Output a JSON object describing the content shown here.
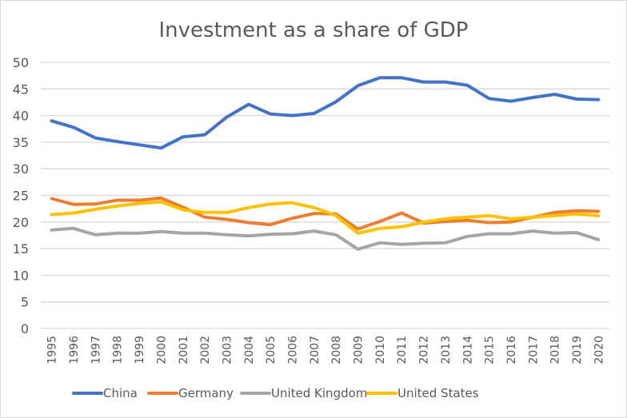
{
  "chart_data": {
    "type": "line",
    "title": "Investment as a share of GDP",
    "xlabel": "",
    "ylabel": "",
    "ylim": [
      0,
      50
    ],
    "yticks": [
      0,
      5,
      10,
      15,
      20,
      25,
      30,
      35,
      40,
      45,
      50
    ],
    "grid": true,
    "legend_position": "bottom",
    "x": [
      "1995",
      "1996",
      "1997",
      "1998",
      "1999",
      "2000",
      "2001",
      "2002",
      "2003",
      "2004",
      "2005",
      "2006",
      "2007",
      "2008",
      "2009",
      "2010",
      "2011",
      "2012",
      "2013",
      "2014",
      "2015",
      "2016",
      "2017",
      "2018",
      "2019",
      "2020"
    ],
    "series": [
      {
        "name": "China",
        "color": "#4472c4",
        "values": [
          39.0,
          37.8,
          35.8,
          35.1,
          34.5,
          33.9,
          36.0,
          36.4,
          39.7,
          42.1,
          40.3,
          40.0,
          40.4,
          42.6,
          45.6,
          47.1,
          47.1,
          46.3,
          46.3,
          45.7,
          43.2,
          42.7,
          43.4,
          44.0,
          43.1,
          43.0
        ]
      },
      {
        "name": "Germany",
        "color": "#ed7d31",
        "values": [
          24.4,
          23.3,
          23.4,
          24.1,
          24.1,
          24.5,
          22.8,
          20.9,
          20.5,
          19.9,
          19.5,
          20.7,
          21.6,
          21.5,
          18.7,
          20.1,
          21.7,
          19.8,
          20.1,
          20.3,
          19.9,
          20.0,
          20.9,
          21.8,
          22.1,
          22.0
        ]
      },
      {
        "name": "United Kingdom",
        "color": "#a5a5a5",
        "values": [
          18.5,
          18.8,
          17.6,
          17.9,
          17.9,
          18.2,
          17.9,
          17.9,
          17.6,
          17.4,
          17.7,
          17.8,
          18.3,
          17.6,
          14.9,
          16.1,
          15.8,
          16.0,
          16.1,
          17.3,
          17.8,
          17.8,
          18.3,
          17.9,
          18.0,
          16.7
        ]
      },
      {
        "name": "United States",
        "color": "#ffc000",
        "values": [
          21.4,
          21.7,
          22.4,
          23.0,
          23.5,
          23.8,
          22.3,
          21.8,
          21.8,
          22.7,
          23.4,
          23.6,
          22.7,
          21.2,
          17.9,
          18.8,
          19.1,
          20.0,
          20.6,
          20.9,
          21.2,
          20.6,
          20.9,
          21.2,
          21.5,
          21.2
        ]
      }
    ]
  }
}
